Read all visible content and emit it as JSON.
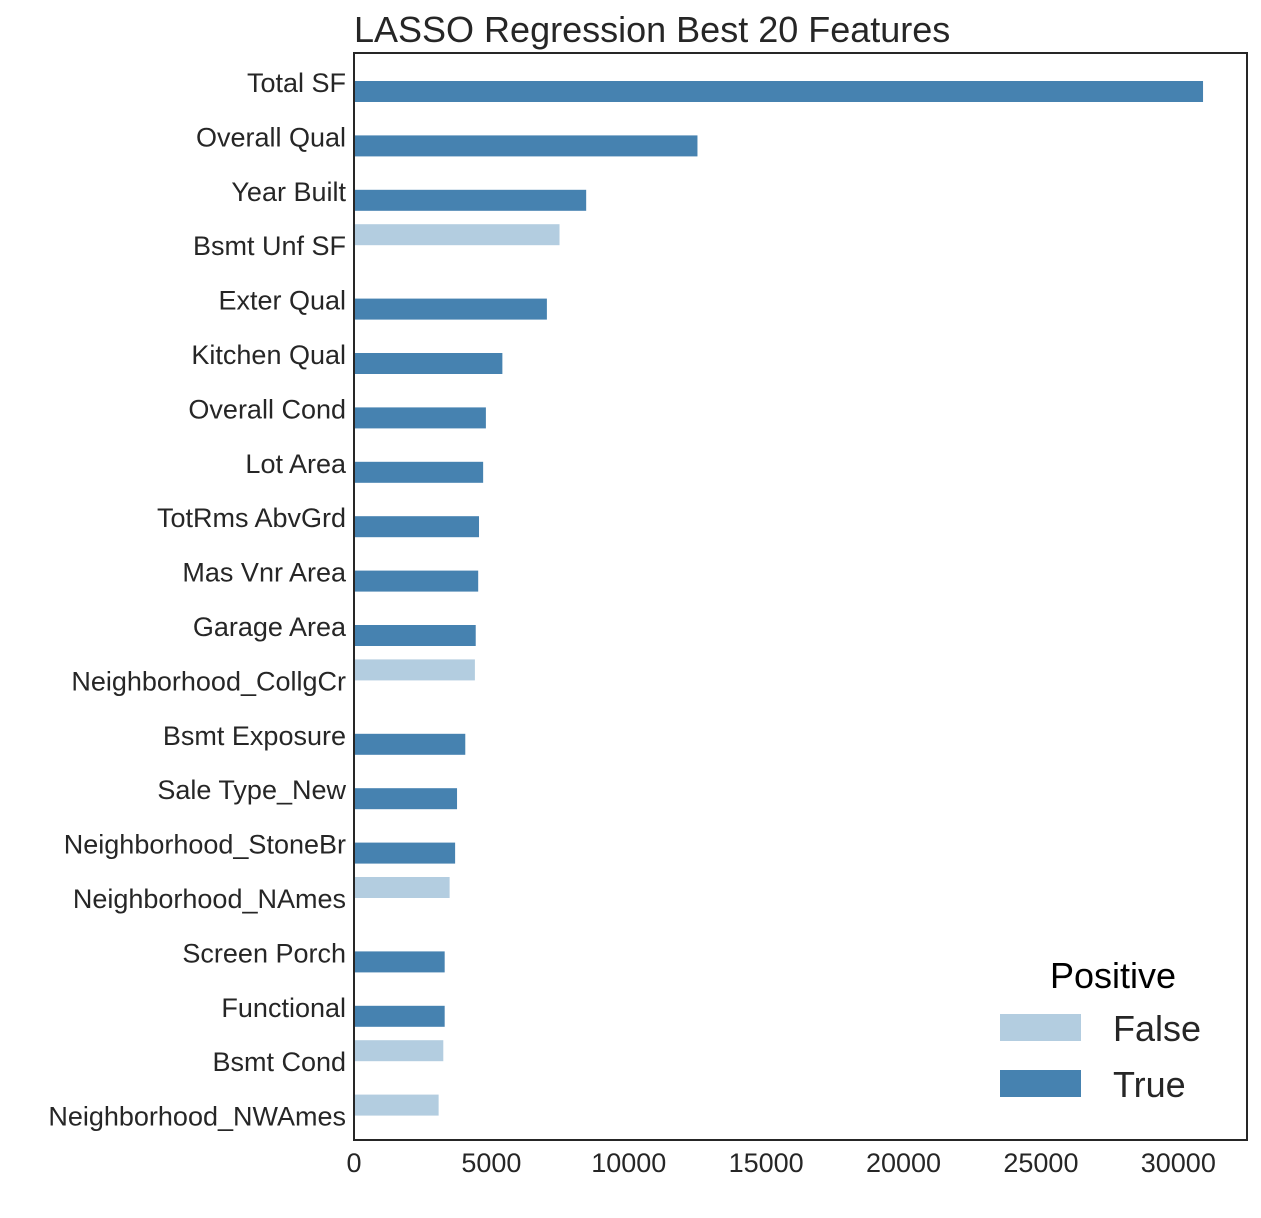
{
  "chart_data": {
    "type": "bar",
    "orientation": "horizontal",
    "title": "LASSO Regression Best 20 Features",
    "xlabel": "",
    "ylabel": "",
    "xlim": [
      0,
      32500
    ],
    "xticks": [
      0,
      5000,
      10000,
      15000,
      20000,
      25000,
      30000
    ],
    "grid": false,
    "legend": {
      "title": "Positive",
      "position": "bottom-right",
      "entries": [
        {
          "label": "False",
          "color": "#b3cde0"
        },
        {
          "label": "True",
          "color": "#4682b0"
        }
      ]
    },
    "categories": [
      "Total SF",
      "Overall Qual",
      "Year Built",
      "Bsmt Unf SF",
      "Exter Qual",
      "Kitchen Qual",
      "Overall Cond",
      "Lot Area",
      "TotRms AbvGrd",
      "Mas Vnr Area",
      "Garage Area",
      "Neighborhood_CollgCr",
      "Bsmt Exposure",
      "Sale Type_New",
      "Neighborhood_StoneBr",
      "Neighborhood_NAmes",
      "Screen Porch",
      "Functional",
      "Bsmt Cond",
      "Neighborhood_NWAmes"
    ],
    "values": [
      30900,
      12500,
      8450,
      7480,
      7020,
      5400,
      4800,
      4700,
      4550,
      4520,
      4430,
      4400,
      4050,
      3750,
      3680,
      3480,
      3300,
      3300,
      3250,
      3080
    ],
    "positive": [
      true,
      true,
      true,
      false,
      true,
      true,
      true,
      true,
      true,
      true,
      true,
      false,
      true,
      true,
      true,
      false,
      true,
      true,
      false,
      false
    ]
  }
}
